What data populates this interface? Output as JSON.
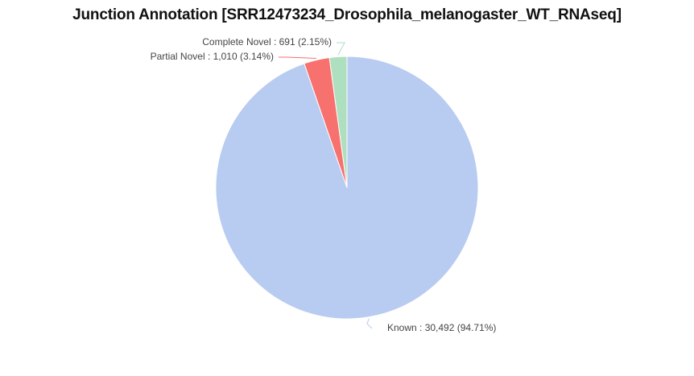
{
  "chart_data": {
    "type": "pie",
    "title": "Junction Annotation [SRR12473234_Drosophila_melanogaster_WT_RNAseq]",
    "slices": [
      {
        "name": "Known",
        "value": 30492,
        "display_value": "30,492",
        "percent": "94.71%",
        "color": "#b8cbf0"
      },
      {
        "name": "Partial Novel",
        "value": 1010,
        "display_value": "1,010",
        "percent": "3.14%",
        "color": "#f7716e"
      },
      {
        "name": "Complete Novel",
        "value": 691,
        "display_value": "691",
        "percent": "2.15%",
        "color": "#aedfbf"
      }
    ],
    "labels": [
      "Known : 30,492 (94.71%)",
      "Partial Novel : 1,010 (3.14%)",
      "Complete Novel : 691 (2.15%)"
    ],
    "legend": "none"
  }
}
